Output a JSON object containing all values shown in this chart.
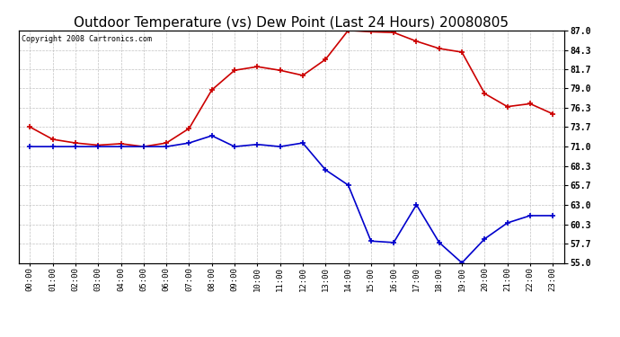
{
  "title": "Outdoor Temperature (vs) Dew Point (Last 24 Hours) 20080805",
  "copyright_text": "Copyright 2008 Cartronics.com",
  "x_labels": [
    "00:00",
    "01:00",
    "02:00",
    "03:00",
    "04:00",
    "05:00",
    "06:00",
    "07:00",
    "08:00",
    "09:00",
    "10:00",
    "11:00",
    "12:00",
    "13:00",
    "14:00",
    "15:00",
    "16:00",
    "17:00",
    "18:00",
    "19:00",
    "20:00",
    "21:00",
    "22:00",
    "23:00"
  ],
  "y_ticks": [
    55.0,
    57.7,
    60.3,
    63.0,
    65.7,
    68.3,
    71.0,
    73.7,
    76.3,
    79.0,
    81.7,
    84.3,
    87.0
  ],
  "y_tick_labels": [
    "55.0",
    "57.7",
    "60.3",
    "63.0",
    "65.7",
    "68.3",
    "71.0",
    "73.7",
    "76.3",
    "79.0",
    "81.7",
    "84.3",
    "87.0"
  ],
  "ylim": [
    55.0,
    87.0
  ],
  "temp_color": "#cc0000",
  "dew_color": "#0000cc",
  "bg_color": "#ffffff",
  "grid_color": "#bbbbbb",
  "temp_values": [
    73.7,
    72.0,
    71.5,
    71.2,
    71.4,
    71.0,
    71.5,
    73.5,
    78.8,
    81.5,
    82.0,
    81.5,
    80.8,
    83.0,
    87.0,
    86.8,
    86.7,
    85.5,
    84.5,
    84.0,
    78.3,
    76.5,
    76.9,
    75.5
  ],
  "dew_values": [
    71.0,
    71.0,
    71.0,
    71.0,
    71.0,
    71.0,
    71.0,
    71.5,
    72.5,
    71.0,
    71.3,
    71.0,
    71.5,
    67.8,
    65.7,
    58.0,
    57.8,
    63.0,
    57.8,
    55.0,
    58.3,
    60.5,
    61.5,
    61.5
  ],
  "marker": "+",
  "marker_size": 5,
  "line_width": 1.2,
  "title_fontsize": 11,
  "copyright_fontsize": 6,
  "tick_fontsize": 7,
  "xtick_fontsize": 6.5
}
